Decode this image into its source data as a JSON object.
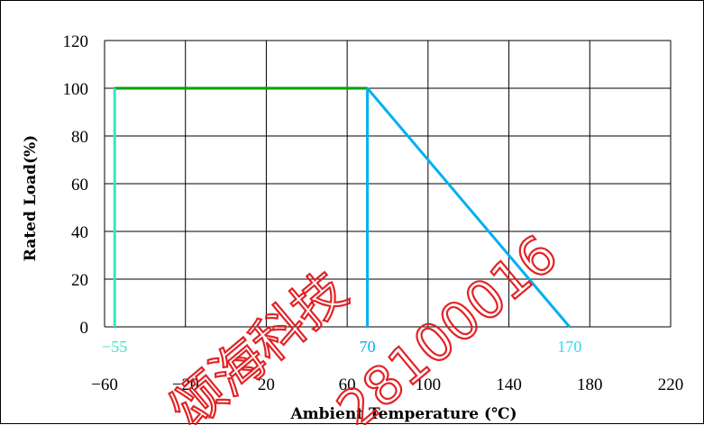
{
  "chart_data": {
    "type": "line",
    "xlabel": "Ambient Temperature (℃)",
    "ylabel": "Rated Load(%)",
    "xlim": [
      -60,
      220
    ],
    "ylim": [
      0,
      120
    ],
    "x_ticks": [
      -60,
      -20,
      20,
      60,
      100,
      140,
      180,
      220
    ],
    "x_tick_labels": [
      "−60",
      "−20",
      "20",
      "60",
      "100",
      "140",
      "180",
      "220"
    ],
    "y_ticks": [
      0,
      20,
      40,
      60,
      80,
      100,
      120
    ],
    "y_tick_labels": [
      "0",
      "20",
      "40",
      "60",
      "80",
      "100",
      "120"
    ],
    "grid": true,
    "series": [
      {
        "color": "#00a000",
        "points": [
          [
            -55,
            100
          ],
          [
            70,
            100
          ]
        ]
      },
      {
        "color": "#33e8c0",
        "points": [
          [
            -55,
            0
          ],
          [
            -55,
            100
          ]
        ]
      },
      {
        "color": "#00b0f0",
        "points": [
          [
            70,
            0
          ],
          [
            70,
            100
          ]
        ]
      },
      {
        "color": "#00b0f0",
        "points": [
          [
            70,
            100
          ],
          [
            170,
            0
          ]
        ]
      }
    ],
    "annotations": [
      {
        "x": -55,
        "text": "−55",
        "color": "#33e8c0"
      },
      {
        "x": 70,
        "text": "70",
        "color": "#00b0f0"
      },
      {
        "x": 170,
        "text": "170",
        "color": "#33d8f0"
      }
    ]
  },
  "watermark": {
    "text_cn": "颂海科技",
    "text_num": "28100016",
    "color": "#e0181a"
  }
}
